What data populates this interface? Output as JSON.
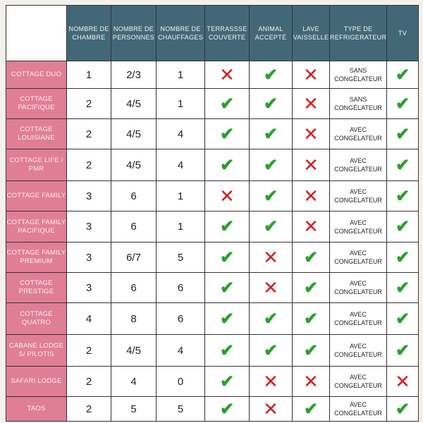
{
  "headers": [
    "",
    "NOMBRE DE CHAMBRE",
    "NOMBRE DE PERSONNES",
    "NOMBRE DE CHAUFFAGES",
    "TERRASSSE COUVERTE",
    "ANIMAL ACCEPTÉ",
    "LAVE VAISSELLE",
    "TYPE DE REFRIGERATEUR",
    "TV"
  ],
  "colors": {
    "header": "#426878",
    "name_cell": "#e07e95",
    "check": "#2ba02b",
    "cross": "#d42020"
  },
  "rows": [
    {
      "name": "COTTAGE DUO",
      "chambres": "1",
      "personnes": "2/3",
      "chauffages": "1",
      "terrasse": false,
      "animal": true,
      "lave": false,
      "frigo": "SANS CONGÉLATEUR",
      "tv": true
    },
    {
      "name": "COTTAGE PACIFIQUE",
      "chambres": "2",
      "personnes": "4/5",
      "chauffages": "1",
      "terrasse": true,
      "animal": true,
      "lave": false,
      "frigo": "SANS CONGÉLATEUR",
      "tv": true
    },
    {
      "name": "COTTAGE LOUISIANE",
      "chambres": "2",
      "personnes": "4/5",
      "chauffages": "4",
      "terrasse": true,
      "animal": true,
      "lave": false,
      "frigo": "AVEC CONGELATEUR",
      "tv": true
    },
    {
      "name": "COTTAGE LIFE / PMR",
      "chambres": "2",
      "personnes": "4/5",
      "chauffages": "4",
      "terrasse": true,
      "animal": true,
      "lave": false,
      "frigo": "AVEC CONGELATEUR",
      "tv": true
    },
    {
      "name": "COTTAGE FAMILY",
      "chambres": "3",
      "personnes": "6",
      "chauffages": "1",
      "terrasse": false,
      "animal": true,
      "lave": false,
      "frigo": "AVEC CONGELATEUR",
      "tv": true
    },
    {
      "name": "COTTAGE FAMILY PACIFIQUE",
      "chambres": "3",
      "personnes": "6",
      "chauffages": "1",
      "terrasse": true,
      "animal": true,
      "lave": false,
      "frigo": "AVEC CONGELATEUR",
      "tv": true
    },
    {
      "name": "COTTAGE FAMILY PREMIUM",
      "chambres": "3",
      "personnes": "6/7",
      "chauffages": "5",
      "terrasse": true,
      "animal": false,
      "lave": true,
      "frigo": "AVEC CONGELATEUR",
      "tv": true
    },
    {
      "name": "COTTAGE PRESTIGE",
      "chambres": "3",
      "personnes": "6",
      "chauffages": "6",
      "terrasse": true,
      "animal": false,
      "lave": true,
      "frigo": "AVEC CONGELATEUR",
      "tv": true
    },
    {
      "name": "COTTAGE QUATRO",
      "chambres": "4",
      "personnes": "8",
      "chauffages": "6",
      "terrasse": true,
      "animal": true,
      "lave": true,
      "frigo": "AVEC CONGELATEUR",
      "tv": true
    },
    {
      "name": "CABANE LODGE S/ PILOTIS",
      "chambres": "2",
      "personnes": "4/5",
      "chauffages": "4",
      "terrasse": true,
      "animal": true,
      "lave": true,
      "frigo": "AVEC CONGELATEUR",
      "tv": true
    },
    {
      "name": "SAFARI LODGE",
      "chambres": "2",
      "personnes": "4",
      "chauffages": "0",
      "terrasse": true,
      "animal": false,
      "lave": false,
      "frigo": "AVEC CONGELATEUR",
      "tv": false
    },
    {
      "name": "TAOS",
      "chambres": "2",
      "personnes": "5",
      "chauffages": "5",
      "terrasse": true,
      "animal": false,
      "lave": true,
      "frigo": "AVEC CONGELATEUR",
      "tv": true
    }
  ]
}
